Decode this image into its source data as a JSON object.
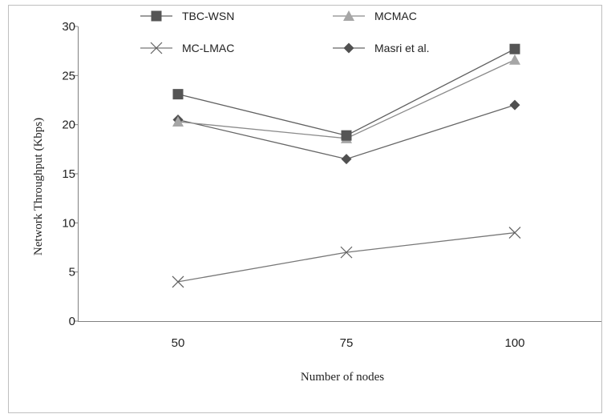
{
  "chart_data": {
    "type": "line",
    "title": "",
    "xlabel": "Number of nodes",
    "ylabel": "Network Throughput (Kbps)",
    "categories": [
      "50",
      "75",
      "100"
    ],
    "ylim": [
      0,
      30
    ],
    "yticks": [
      "0",
      "5",
      "10",
      "15",
      "20",
      "25",
      "30"
    ],
    "grid": false,
    "legend_position": "top",
    "series": [
      {
        "name": "TBC-WSN",
        "marker": "square",
        "color": "#555555",
        "line_color": "#606060",
        "values": [
          23.1,
          18.9,
          27.7
        ]
      },
      {
        "name": "MCMAC",
        "marker": "triangle",
        "color": "#a6a6a6",
        "line_color": "#8a8a8a",
        "values": [
          20.3,
          18.6,
          26.6
        ]
      },
      {
        "name": "MC-LMAC",
        "marker": "x",
        "color": "#606060",
        "line_color": "#777777",
        "values": [
          4.0,
          7.0,
          9.0
        ]
      },
      {
        "name": "Masri et al.",
        "marker": "diamond",
        "color": "#505050",
        "line_color": "#666666",
        "values": [
          20.5,
          16.5,
          22.0
        ]
      }
    ]
  }
}
